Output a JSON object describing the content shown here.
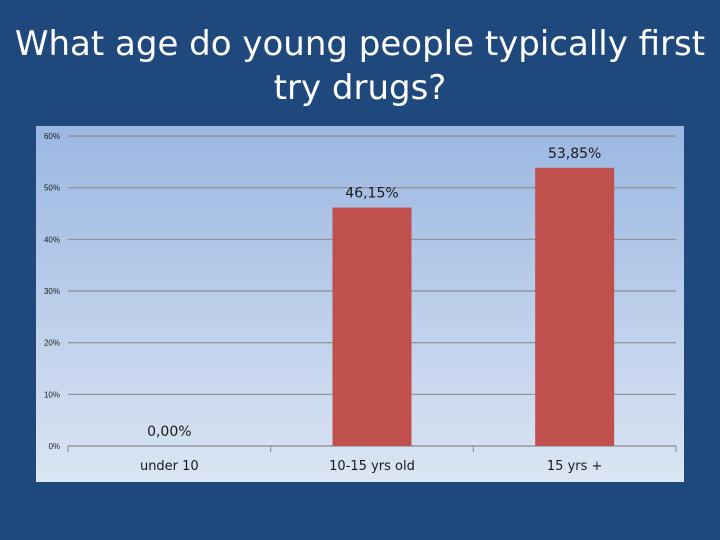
{
  "slide": {
    "title": "What age do young people typically first try drugs?"
  },
  "colors": {
    "background": "#1f497d",
    "bar": "#c0504d",
    "plot_top": "#9bb7e2",
    "plot_bottom": "#dbe5f3",
    "gridline": "#8c8c8c"
  },
  "chart_data": {
    "type": "bar",
    "title": "",
    "xlabel": "",
    "ylabel": "",
    "categories": [
      "under 10",
      "10-15 yrs old",
      "15 yrs +"
    ],
    "values": [
      0.0,
      46.15,
      53.85
    ],
    "data_labels": [
      "0,00%",
      "46,15%",
      "53,85%"
    ],
    "yticks": [
      "0%",
      "10%",
      "20%",
      "30%",
      "40%",
      "50%",
      "60%"
    ],
    "ylim": [
      0,
      60
    ],
    "grid": true,
    "legend": "none"
  }
}
